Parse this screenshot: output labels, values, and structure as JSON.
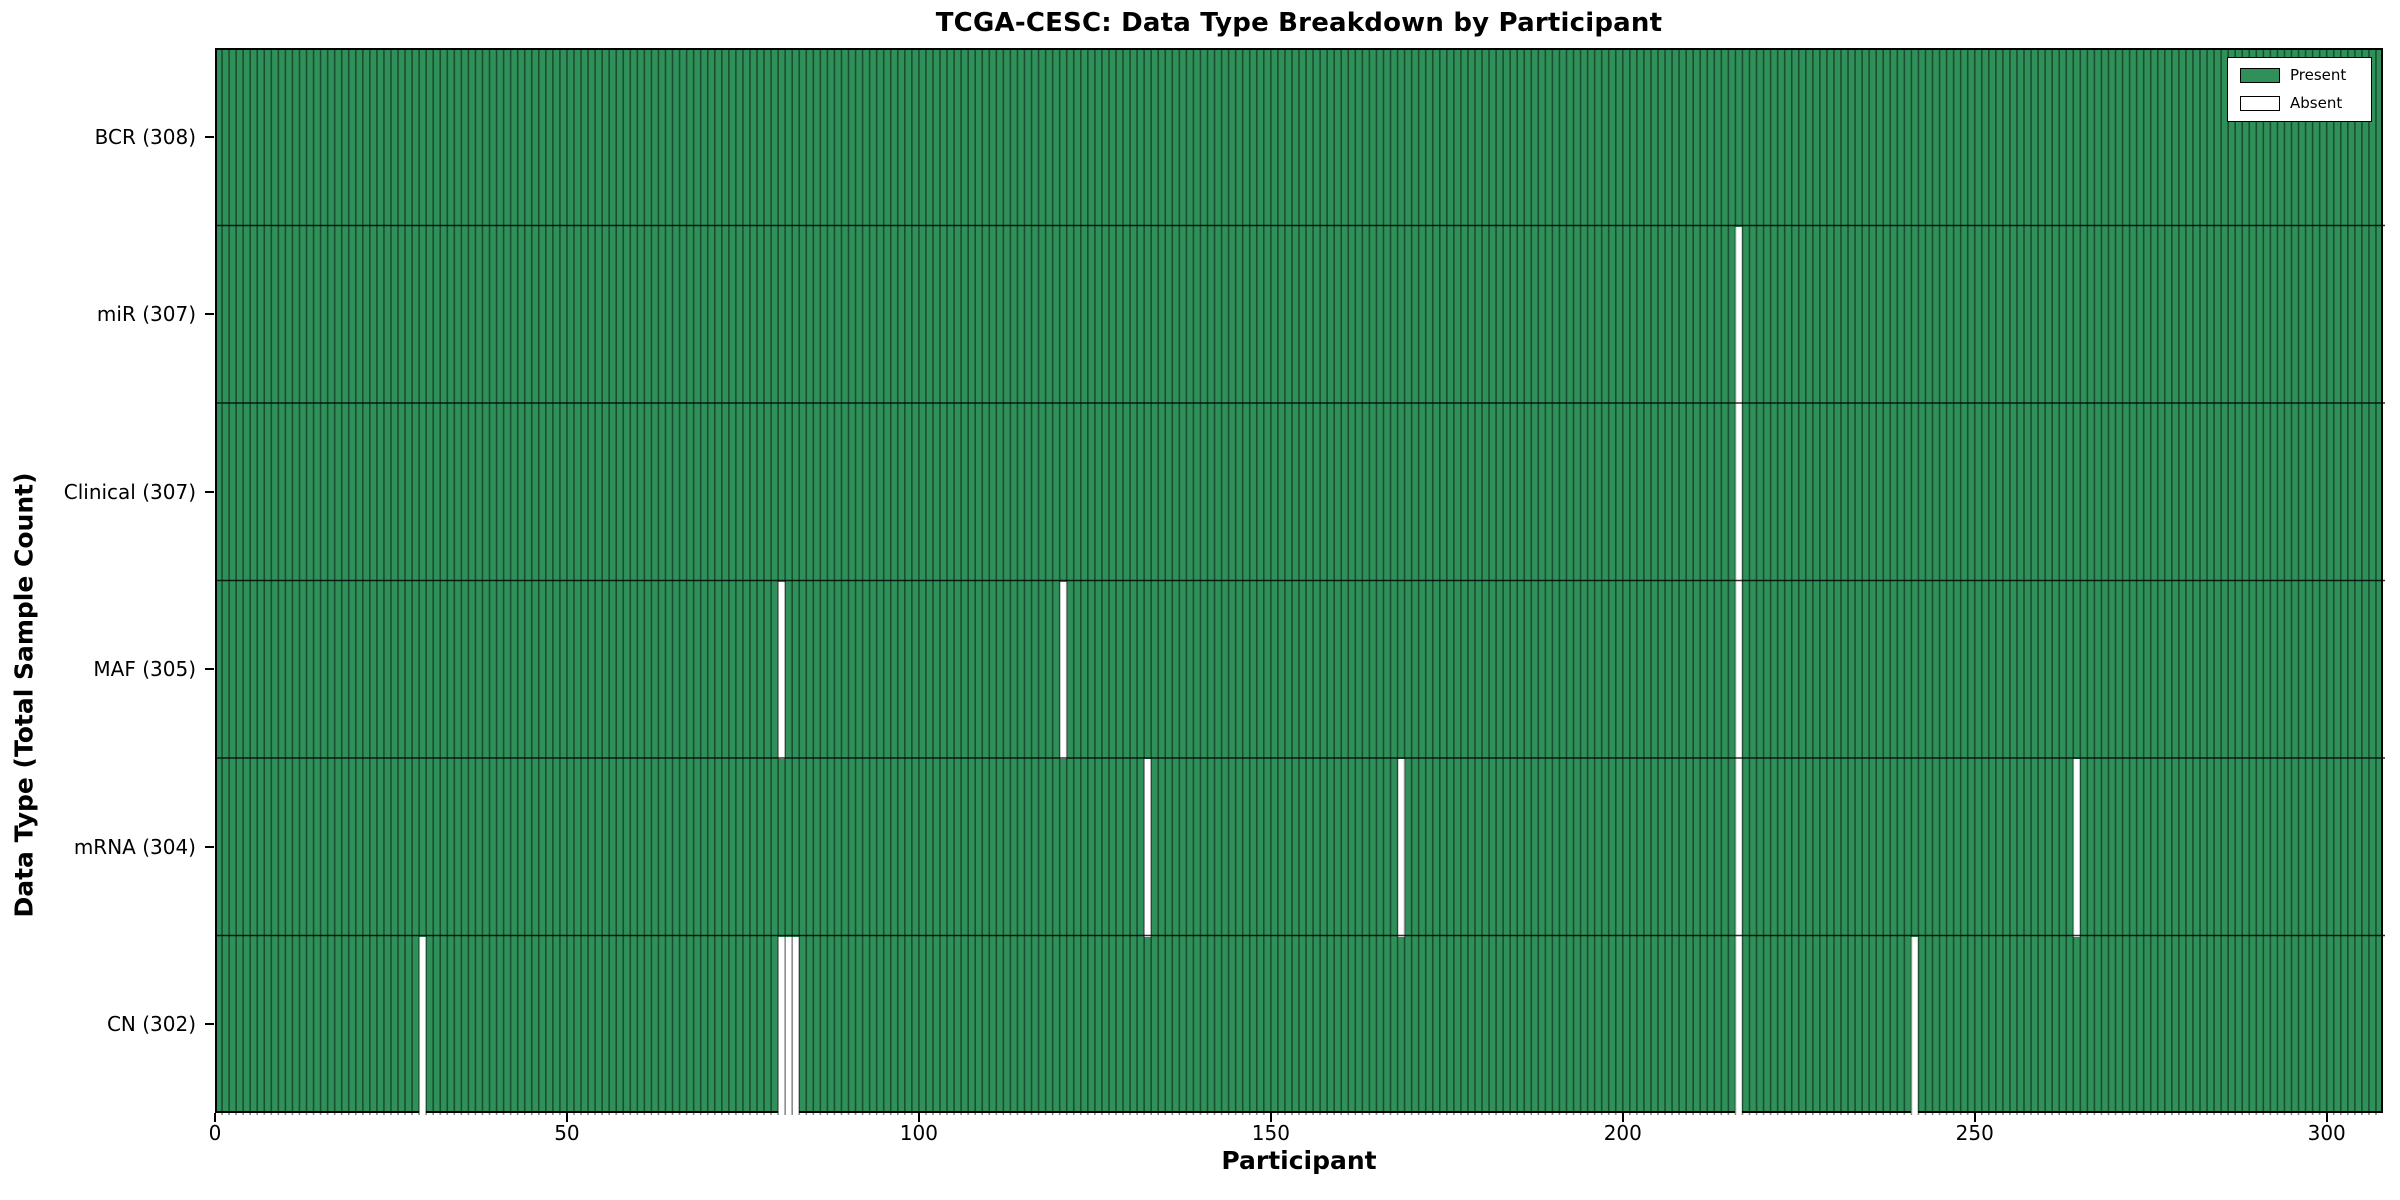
{
  "title": "TCGA-CESC: Data Type Breakdown by Participant",
  "x_axis_label": "Participant",
  "y_axis_label": "Data Type (Total Sample Count)",
  "legend": {
    "present_label": "Present",
    "absent_label": "Absent"
  },
  "colors": {
    "present": "#2f9059",
    "absent": "#ffffff",
    "edge": "#000000"
  },
  "chart_data": {
    "type": "heatmap",
    "title": "TCGA-CESC: Data Type Breakdown by Participant",
    "xlabel": "Participant",
    "ylabel": "Data Type (Total Sample Count)",
    "xlim": [
      0,
      308
    ],
    "x_ticks": [
      0,
      50,
      100,
      150,
      200,
      250,
      300
    ],
    "n_participants": 308,
    "grid": false,
    "legend_position": "upper right",
    "legend_entries": [
      {
        "label": "Present",
        "color": "#2f9059"
      },
      {
        "label": "Absent",
        "color": "#ffffff"
      }
    ],
    "rows": [
      {
        "label": "BCR (308)",
        "data_type": "BCR",
        "total_sample_count": 308,
        "absent_participants": []
      },
      {
        "label": "miR (307)",
        "data_type": "miR",
        "total_sample_count": 307,
        "absent_participants": [
          216
        ]
      },
      {
        "label": "Clinical (307)",
        "data_type": "Clinical",
        "total_sample_count": 307,
        "absent_participants": [
          216
        ]
      },
      {
        "label": "MAF (305)",
        "data_type": "MAF",
        "total_sample_count": 305,
        "absent_participants": [
          80,
          120,
          216
        ]
      },
      {
        "label": "mRNA (304)",
        "data_type": "mRNA",
        "total_sample_count": 304,
        "absent_participants": [
          132,
          168,
          216,
          264
        ]
      },
      {
        "label": "CN (302)",
        "data_type": "CN",
        "total_sample_count": 302,
        "absent_participants": [
          29,
          80,
          81,
          82,
          216,
          241
        ]
      }
    ]
  }
}
